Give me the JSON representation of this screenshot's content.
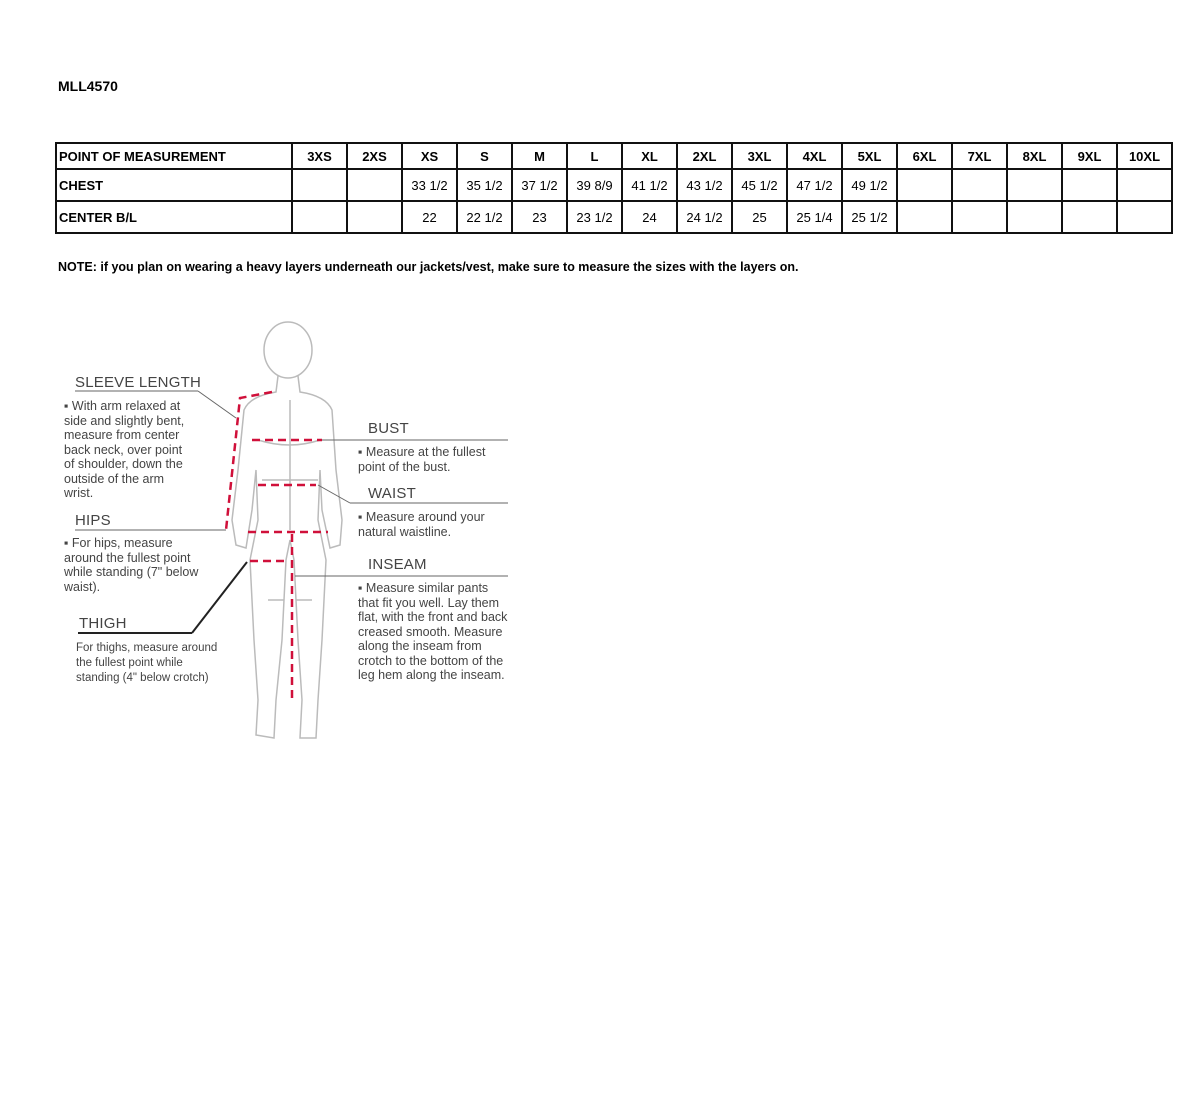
{
  "product_code": "MLL4570",
  "table": {
    "headers": [
      "POINT OF MEASUREMENT",
      "3XS",
      "2XS",
      "XS",
      "S",
      "M",
      "L",
      "XL",
      "2XL",
      "3XL",
      "4XL",
      "5XL",
      "6XL",
      "7XL",
      "8XL",
      "9XL",
      "10XL"
    ],
    "rows": [
      {
        "label": "CHEST",
        "values": [
          "",
          "",
          "33 1/2",
          "35 1/2",
          "37 1/2",
          "39 8/9",
          "41 1/2",
          "43 1/2",
          "45 1/2",
          "47 1/2",
          "49 1/2",
          "",
          "",
          "",
          "",
          ""
        ]
      },
      {
        "label": "CENTER B/L",
        "values": [
          "",
          "",
          "22",
          "22 1/2",
          "23",
          "23 1/2",
          "24",
          "24 1/2",
          "25",
          "25 1/4",
          "25 1/2",
          "",
          "",
          "",
          "",
          ""
        ]
      }
    ]
  },
  "note": "NOTE: if you plan on wearing a heavy layers underneath our jackets/vest, make sure to measure the sizes with the layers on.",
  "guide": {
    "accent_color": "#d0103a",
    "sleeve": {
      "title": "SLEEVE LENGTH",
      "text": "With arm relaxed at side and slightly bent, measure from center back neck, over point of shoulder, down the outside of the arm wrist."
    },
    "hips": {
      "title": "HIPS",
      "text": "For hips, measure around the fullest point while standing (7\" below waist)."
    },
    "thigh": {
      "title": "THIGH",
      "text": "For thighs, measure around the fullest point while standing (4\" below crotch)"
    },
    "bust": {
      "title": "BUST",
      "text": "Measure at the fullest point of the bust."
    },
    "waist": {
      "title": "WAIST",
      "text": "Measure around your natural waistline."
    },
    "inseam": {
      "title": "INSEAM",
      "text": "Measure similar pants that fit you well. Lay them flat, with the front and back creased smooth. Measure along the inseam from crotch to the bottom of the leg hem along the inseam."
    }
  }
}
